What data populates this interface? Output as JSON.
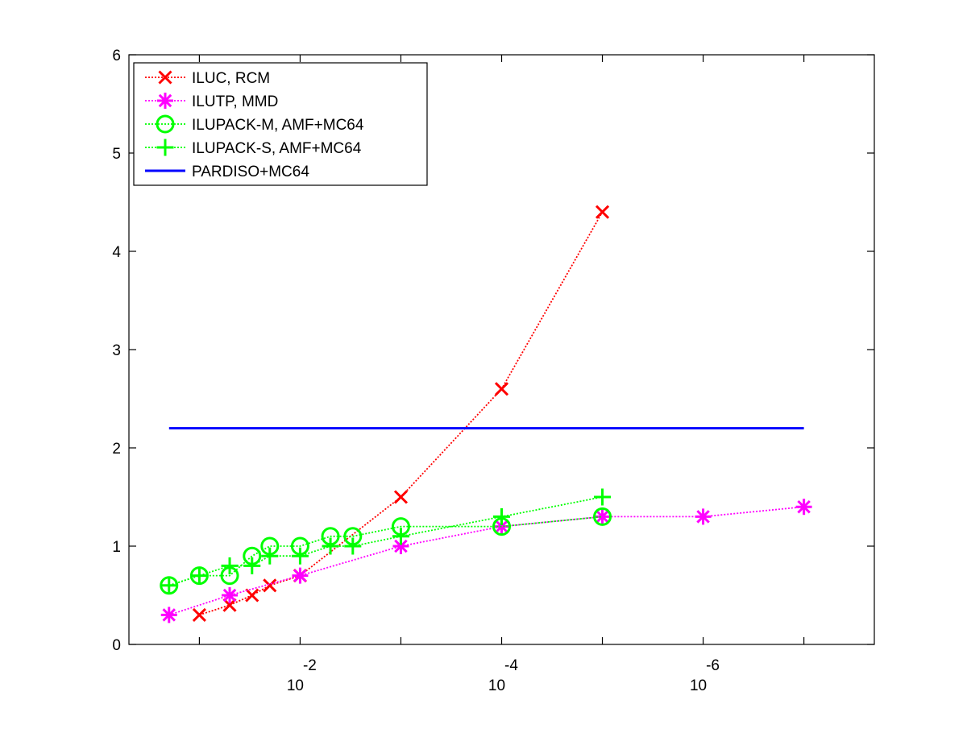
{
  "chart_data": {
    "type": "line",
    "title": "",
    "xlabel": "",
    "ylabel": "",
    "xscale": "log (reversed)",
    "xlim": [
      0.5,
      2e-08
    ],
    "ylim": [
      0,
      6
    ],
    "grid": false,
    "legend_position": "top-left",
    "x_ticks": [
      {
        "base": "10",
        "exponent": "-2",
        "value": 0.01
      },
      {
        "base": "10",
        "exponent": "-4",
        "value": 0.0001
      },
      {
        "base": "10",
        "exponent": "-6",
        "value": 1e-06
      }
    ],
    "y_ticks": [
      "0",
      "1",
      "2",
      "3",
      "4",
      "5",
      "6"
    ],
    "series": [
      {
        "name": "ILUC, RCM",
        "color": "#ff0000",
        "marker": "x",
        "line": "dotted",
        "x": [
          0.1,
          0.05,
          0.03,
          0.02,
          0.01,
          0.001,
          0.0001,
          1e-05
        ],
        "y": [
          0.3,
          0.4,
          0.5,
          0.6,
          0.7,
          1.5,
          2.6,
          4.4
        ]
      },
      {
        "name": "ILUTP, MMD",
        "color": "#ff00ff",
        "marker": "asterisk",
        "line": "dotted",
        "x": [
          0.2,
          0.05,
          0.01,
          0.001,
          0.0001,
          1e-05,
          1e-06,
          1e-07
        ],
        "y": [
          0.3,
          0.5,
          0.7,
          1.0,
          1.2,
          1.3,
          1.3,
          1.4
        ]
      },
      {
        "name": "ILUPACK-M, AMF+MC64",
        "color": "#00ff00",
        "marker": "circle",
        "line": "dotted",
        "x": [
          0.2,
          0.1,
          0.05,
          0.03,
          0.02,
          0.01,
          0.005,
          0.003,
          0.001,
          0.0001,
          1e-05
        ],
        "y": [
          0.6,
          0.7,
          0.7,
          0.9,
          1.0,
          1.0,
          1.1,
          1.1,
          1.2,
          1.2,
          1.3
        ]
      },
      {
        "name": "ILUPACK-S, AMF+MC64",
        "color": "#00ff00",
        "marker": "plus",
        "line": "dotted",
        "x": [
          0.2,
          0.1,
          0.05,
          0.03,
          0.02,
          0.01,
          0.005,
          0.003,
          0.001,
          0.0001,
          1e-05
        ],
        "y": [
          0.6,
          0.7,
          0.8,
          0.8,
          0.9,
          0.9,
          1.0,
          1.0,
          1.1,
          1.3,
          1.5
        ]
      },
      {
        "name": "PARDISO+MC64",
        "color": "#0000ff",
        "marker": "none",
        "line": "solid",
        "x": [
          0.2,
          1e-07
        ],
        "y": [
          2.2,
          2.2
        ]
      }
    ]
  }
}
